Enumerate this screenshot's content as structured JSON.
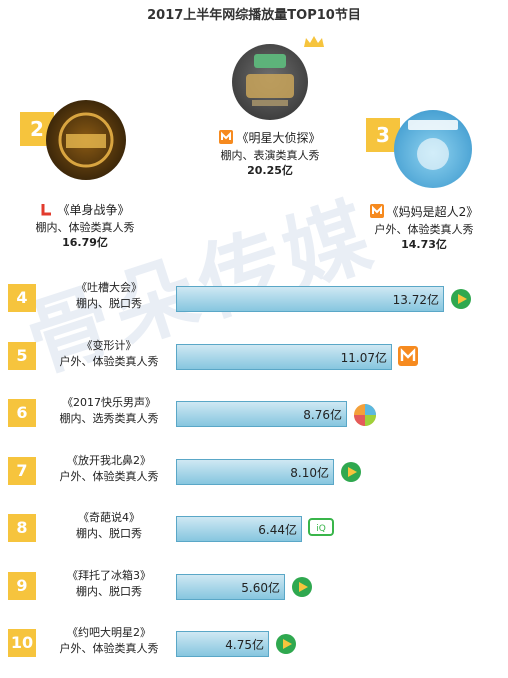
{
  "title": "2017上半年网综播放量TOP10节目",
  "watermark": "骨朵传媒",
  "colors": {
    "badge": "#f6c43d",
    "bar_start": "#cfe8f3",
    "bar_end": "#86c6df",
    "bar_border": "#5aa7c7"
  },
  "top3": [
    {
      "rank": "1",
      "name": "《明星大侦探》",
      "category": "棚内、表演类真人秀",
      "value_text": "20.25亿",
      "platform": "mango-tv-icon"
    },
    {
      "rank": "2",
      "name": "《单身战争》",
      "category": "棚内、体验类真人秀",
      "value_text": "16.79亿",
      "platform": "letv-icon"
    },
    {
      "rank": "3",
      "name": "《妈妈是超人2》",
      "category": "户外、体验类真人秀",
      "value_text": "14.73亿",
      "platform": "mango-tv-icon"
    }
  ],
  "chart_data": {
    "type": "bar",
    "title": "2017上半年网综播放量TOP10节目",
    "unit": "亿",
    "categories": [
      "《吐槽大会》",
      "《变形计》",
      "《2017快乐男声》",
      "《放开我北鼻2》",
      "《奇葩说4》",
      "《拜托了冰箱3》",
      "《约吧大明星2》"
    ],
    "values": [
      13.72,
      11.07,
      8.76,
      8.1,
      6.44,
      5.6,
      4.75
    ],
    "ranks": [
      "4",
      "5",
      "6",
      "7",
      "8",
      "9",
      "10"
    ],
    "subtitles": [
      "棚内、脱口秀",
      "户外、体验类真人秀",
      "棚内、选秀类真人秀",
      "户外、体验类真人秀",
      "棚内、脱口秀",
      "棚内、脱口秀",
      "户外、体验类真人秀"
    ],
    "value_labels": [
      "13.72亿",
      "11.07亿",
      "8.76亿",
      "8.10亿",
      "6.44亿",
      "5.60亿",
      "4.75亿"
    ],
    "platforms": [
      "tencent-video-icon",
      "mango-tv-icon",
      "pie-icon",
      "tencent-video-icon",
      "iqiyi-icon",
      "tencent-video-icon",
      "tencent-video-icon"
    ],
    "top3_values": [
      20.25,
      16.79,
      14.73
    ]
  }
}
